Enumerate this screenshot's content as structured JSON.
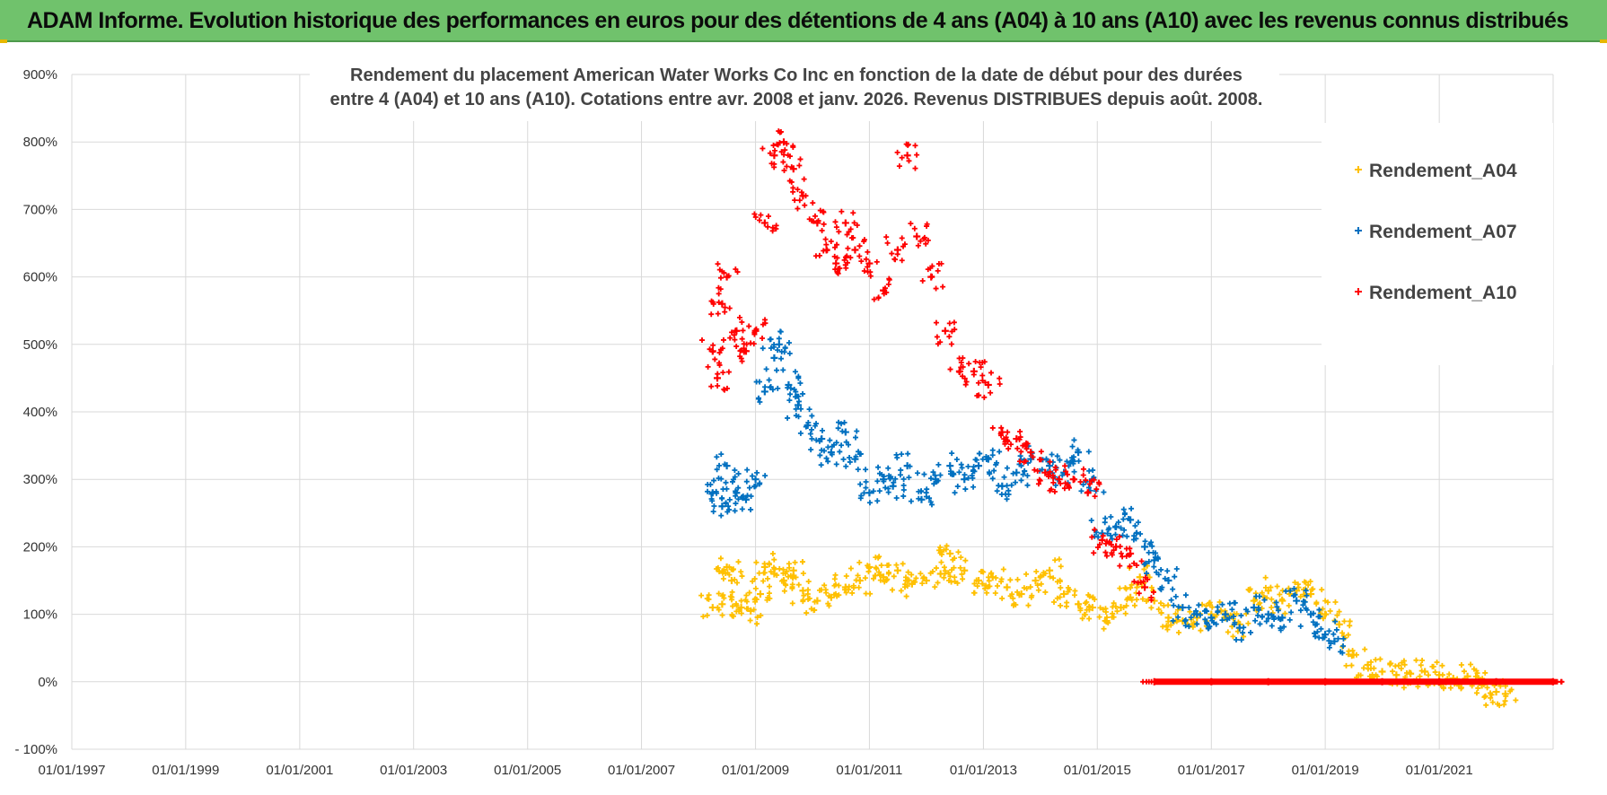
{
  "banner": {
    "title": "ADAM Informe. Evolution historique des performances en euros pour des détentions de 4 ans (A04) à 10 ans (A10) avec les revenus connus distribués"
  },
  "chart_data": {
    "type": "scatter",
    "title_line1": "Rendement du placement American Water Works Co Inc en fonction de la date de début pour des durées",
    "title_line2": "entre 4 (A04) et 10 ans (A10). Cotations entre avr. 2008 et janv. 2026. Revenus DISTRIBUES depuis août. 2008.",
    "xlabel": "",
    "ylabel": "",
    "x_ticks": [
      "01/01/1997",
      "01/01/1999",
      "01/01/2001",
      "01/01/2003",
      "01/01/2005",
      "01/01/2007",
      "01/01/2009",
      "01/01/2011",
      "01/01/2013",
      "01/01/2015",
      "01/01/2017",
      "01/01/2019",
      "01/01/2021"
    ],
    "y_ticks": [
      "900%",
      "800%",
      "700%",
      "600%",
      "500%",
      "400%",
      "300%",
      "200%",
      "100%",
      "0%",
      "- 100%"
    ],
    "xlim": [
      "1997-01-01",
      "2023-01-01"
    ],
    "ylim": [
      -100,
      900
    ],
    "grid": true,
    "legend_position": "top-right",
    "marker": "+",
    "series": [
      {
        "name": "Rendement_A04",
        "color": "#ffc000",
        "points": [
          [
            "2008-04-01",
            110
          ],
          [
            "2008-06-01",
            115
          ],
          [
            "2008-07-01",
            170
          ],
          [
            "2008-08-01",
            150
          ],
          [
            "2008-10-01",
            110
          ],
          [
            "2008-12-01",
            105
          ],
          [
            "2009-02-01",
            130
          ],
          [
            "2009-03-01",
            170
          ],
          [
            "2009-05-01",
            160
          ],
          [
            "2009-07-01",
            150
          ],
          [
            "2009-09-01",
            165
          ],
          [
            "2009-11-01",
            135
          ],
          [
            "2010-02-01",
            120
          ],
          [
            "2010-05-01",
            125
          ],
          [
            "2010-08-01",
            140
          ],
          [
            "2010-11-01",
            150
          ],
          [
            "2011-01-01",
            170
          ],
          [
            "2011-04-01",
            155
          ],
          [
            "2011-07-01",
            165
          ],
          [
            "2011-10-01",
            145
          ],
          [
            "2012-01-01",
            150
          ],
          [
            "2012-04-01",
            160
          ],
          [
            "2012-06-01",
            190
          ],
          [
            "2012-09-01",
            165
          ],
          [
            "2012-12-01",
            150
          ],
          [
            "2013-03-01",
            155
          ],
          [
            "2013-06-01",
            140
          ],
          [
            "2013-09-01",
            130
          ],
          [
            "2013-12-01",
            150
          ],
          [
            "2014-03-01",
            165
          ],
          [
            "2014-06-01",
            130
          ],
          [
            "2014-09-01",
            115
          ],
          [
            "2014-12-01",
            110
          ],
          [
            "2015-03-01",
            90
          ],
          [
            "2015-06-01",
            110
          ],
          [
            "2015-08-01",
            125
          ],
          [
            "2015-10-01",
            155
          ],
          [
            "2016-01-01",
            120
          ],
          [
            "2016-04-01",
            95
          ],
          [
            "2016-07-01",
            90
          ],
          [
            "2016-10-01",
            95
          ],
          [
            "2017-01-01",
            100
          ],
          [
            "2017-04-01",
            95
          ],
          [
            "2017-07-01",
            85
          ],
          [
            "2017-10-01",
            120
          ],
          [
            "2018-01-01",
            135
          ],
          [
            "2018-04-01",
            120
          ],
          [
            "2018-07-01",
            135
          ],
          [
            "2018-10-01",
            130
          ],
          [
            "2019-01-01",
            100
          ],
          [
            "2019-04-01",
            85
          ],
          [
            "2019-07-01",
            40
          ],
          [
            "2019-10-01",
            25
          ],
          [
            "2020-01-01",
            15
          ],
          [
            "2020-04-01",
            10
          ],
          [
            "2020-07-01",
            12
          ],
          [
            "2020-10-01",
            15
          ],
          [
            "2021-01-01",
            10
          ],
          [
            "2021-04-01",
            5
          ],
          [
            "2021-07-01",
            8
          ],
          [
            "2021-10-01",
            -5
          ],
          [
            "2022-01-01",
            -15
          ],
          [
            "2022-03-01",
            -18
          ]
        ]
      },
      {
        "name": "Rendement_A07",
        "color": "#0070c0",
        "points": [
          [
            "2008-04-01",
            280
          ],
          [
            "2008-06-01",
            260
          ],
          [
            "2008-07-01",
            320
          ],
          [
            "2008-09-01",
            280
          ],
          [
            "2008-11-01",
            270
          ],
          [
            "2009-01-01",
            300
          ],
          [
            "2009-03-01",
            430
          ],
          [
            "2009-05-01",
            480
          ],
          [
            "2009-06-01",
            500
          ],
          [
            "2009-08-01",
            440
          ],
          [
            "2009-10-01",
            410
          ],
          [
            "2009-12-01",
            380
          ],
          [
            "2010-03-01",
            360
          ],
          [
            "2010-05-01",
            340
          ],
          [
            "2010-08-01",
            370
          ],
          [
            "2010-10-01",
            330
          ],
          [
            "2011-01-01",
            280
          ],
          [
            "2011-04-01",
            300
          ],
          [
            "2011-06-01",
            290
          ],
          [
            "2011-09-01",
            320
          ],
          [
            "2011-12-01",
            270
          ],
          [
            "2012-03-01",
            300
          ],
          [
            "2012-06-01",
            320
          ],
          [
            "2012-09-01",
            300
          ],
          [
            "2012-12-01",
            320
          ],
          [
            "2013-02-01",
            330
          ],
          [
            "2013-05-01",
            290
          ],
          [
            "2013-08-01",
            310
          ],
          [
            "2013-11-01",
            330
          ],
          [
            "2014-03-01",
            320
          ],
          [
            "2014-06-01",
            310
          ],
          [
            "2014-09-01",
            340
          ],
          [
            "2014-12-01",
            300
          ],
          [
            "2015-02-01",
            220
          ],
          [
            "2015-05-01",
            230
          ],
          [
            "2015-08-01",
            240
          ],
          [
            "2015-11-01",
            200
          ],
          [
            "2016-01-01",
            180
          ],
          [
            "2016-04-01",
            150
          ],
          [
            "2016-07-01",
            110
          ],
          [
            "2016-10-01",
            100
          ],
          [
            "2017-01-01",
            95
          ],
          [
            "2017-04-01",
            100
          ],
          [
            "2017-07-01",
            80
          ],
          [
            "2017-10-01",
            110
          ],
          [
            "2018-01-01",
            100
          ],
          [
            "2018-04-01",
            95
          ],
          [
            "2018-07-01",
            120
          ],
          [
            "2018-10-01",
            100
          ],
          [
            "2019-01-01",
            70
          ],
          [
            "2019-03-01",
            60
          ]
        ]
      },
      {
        "name": "Rendement_A10",
        "color": "#ff0000",
        "points": [
          [
            "2008-04-01",
            490
          ],
          [
            "2008-05-01",
            450
          ],
          [
            "2008-06-01",
            560
          ],
          [
            "2008-07-01",
            600
          ],
          [
            "2008-09-01",
            520
          ],
          [
            "2008-11-01",
            490
          ],
          [
            "2009-01-01",
            520
          ],
          [
            "2009-03-01",
            680
          ],
          [
            "2009-05-01",
            780
          ],
          [
            "2009-07-01",
            800
          ],
          [
            "2009-09-01",
            760
          ],
          [
            "2009-11-01",
            720
          ],
          [
            "2010-02-01",
            680
          ],
          [
            "2010-04-01",
            640
          ],
          [
            "2010-06-01",
            620
          ],
          [
            "2010-08-01",
            680
          ],
          [
            "2010-10-01",
            640
          ],
          [
            "2011-01-01",
            620
          ],
          [
            "2011-04-01",
            580
          ],
          [
            "2011-07-01",
            640
          ],
          [
            "2011-09-01",
            780
          ],
          [
            "2011-11-01",
            660
          ],
          [
            "2012-02-01",
            600
          ],
          [
            "2012-05-01",
            520
          ],
          [
            "2012-08-01",
            460
          ],
          [
            "2012-11-01",
            460
          ],
          [
            "2013-02-01",
            440
          ],
          [
            "2013-05-01",
            370
          ],
          [
            "2013-08-01",
            360
          ],
          [
            "2013-11-01",
            340
          ],
          [
            "2014-02-01",
            310
          ],
          [
            "2014-05-01",
            300
          ],
          [
            "2014-08-01",
            300
          ],
          [
            "2014-11-01",
            280
          ],
          [
            "2015-02-01",
            210
          ],
          [
            "2015-05-01",
            200
          ],
          [
            "2015-08-01",
            190
          ],
          [
            "2015-11-01",
            140
          ],
          [
            "2016-01-01",
            0
          ],
          [
            "2017-01-01",
            0
          ],
          [
            "2018-01-01",
            0
          ],
          [
            "2019-01-01",
            0
          ],
          [
            "2020-01-01",
            0
          ],
          [
            "2021-01-01",
            0
          ],
          [
            "2022-01-01",
            0
          ],
          [
            "2022-12-31",
            0
          ]
        ]
      }
    ]
  }
}
